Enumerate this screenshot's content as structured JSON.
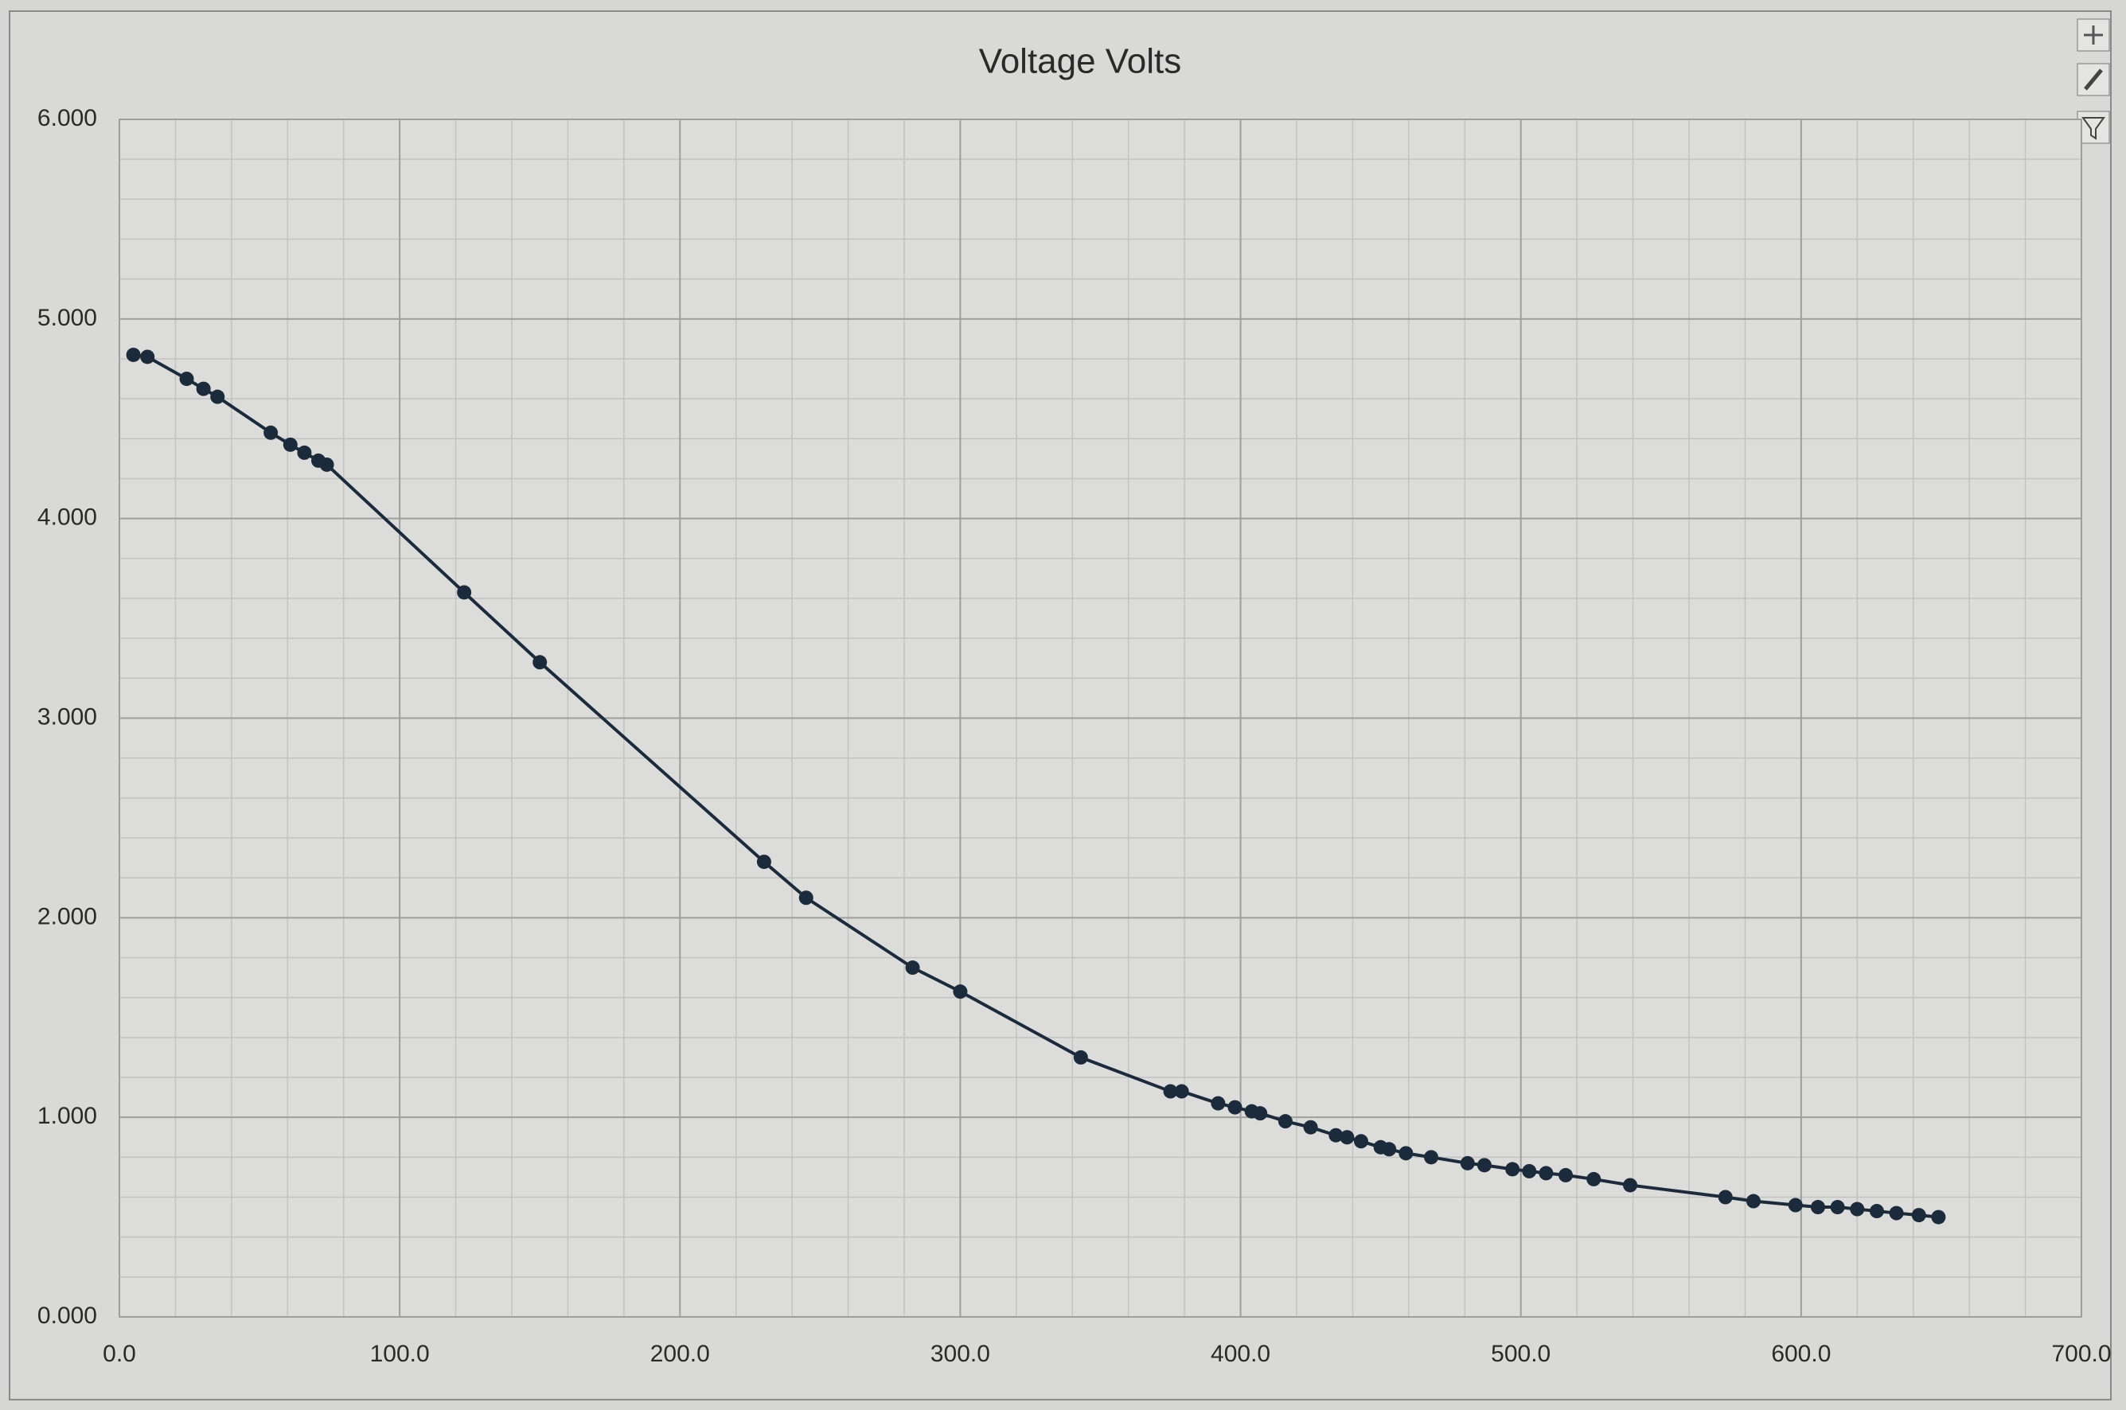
{
  "chart_data": {
    "type": "line",
    "title": "Voltage Volts",
    "x": [
      5,
      10,
      24,
      30,
      35,
      54,
      61,
      66,
      71,
      74,
      123,
      150,
      230,
      245,
      283,
      300,
      343,
      375,
      379,
      392,
      398,
      404,
      407,
      416,
      425,
      434,
      438,
      443,
      450,
      453,
      459,
      468,
      481,
      487,
      497,
      503,
      509,
      516,
      526,
      539,
      573,
      583,
      598,
      606,
      613,
      620,
      627,
      634,
      642,
      649
    ],
    "series": [
      {
        "name": "Voltage Volts",
        "color": "#1c2b3c",
        "values": [
          4.82,
          4.81,
          4.7,
          4.65,
          4.61,
          4.43,
          4.37,
          4.33,
          4.29,
          4.27,
          3.63,
          3.28,
          2.28,
          2.1,
          1.75,
          1.63,
          1.3,
          1.13,
          1.13,
          1.07,
          1.05,
          1.03,
          1.02,
          0.98,
          0.95,
          0.91,
          0.9,
          0.88,
          0.85,
          0.84,
          0.82,
          0.8,
          0.77,
          0.76,
          0.74,
          0.73,
          0.72,
          0.71,
          0.69,
          0.66,
          0.6,
          0.58,
          0.56,
          0.55,
          0.55,
          0.54,
          0.53,
          0.52,
          0.51,
          0.5
        ]
      }
    ],
    "xlim": [
      0,
      700
    ],
    "xticks": [
      {
        "value": 0,
        "label": "0.0"
      },
      {
        "value": 100,
        "label": "100.0"
      },
      {
        "value": 200,
        "label": "200.0"
      },
      {
        "value": 300,
        "label": "300.0"
      },
      {
        "value": 400,
        "label": "400.0"
      },
      {
        "value": 500,
        "label": "500.0"
      },
      {
        "value": 600,
        "label": "600.0"
      },
      {
        "value": 700,
        "label": "700.0"
      }
    ],
    "ylim": [
      0,
      6
    ],
    "yticks": [
      {
        "value": 0,
        "label": "0.000"
      },
      {
        "value": 1,
        "label": "1.000"
      },
      {
        "value": 2,
        "label": "2.000"
      },
      {
        "value": 3,
        "label": "3.000"
      },
      {
        "value": 4,
        "label": "4.000"
      },
      {
        "value": 5,
        "label": "5.000"
      },
      {
        "value": 6,
        "label": "6.000"
      }
    ],
    "grid": true,
    "minor_grid": true
  }
}
